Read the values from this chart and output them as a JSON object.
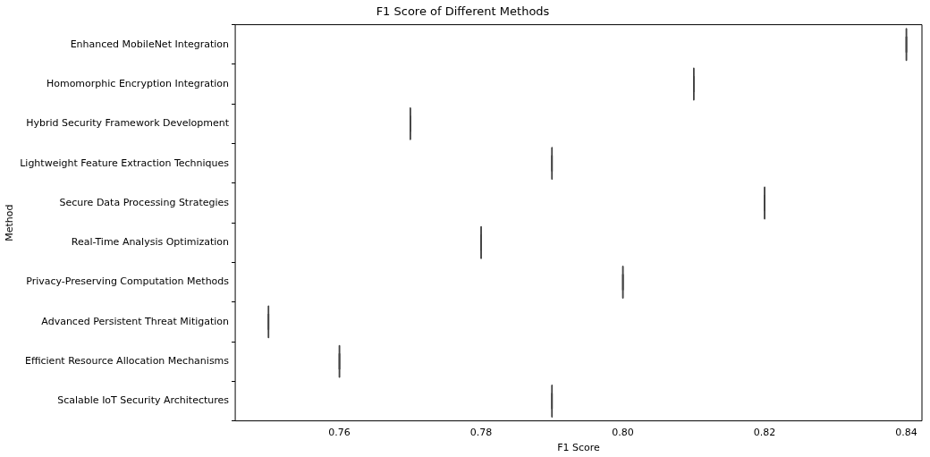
{
  "chart_data": {
    "type": "box",
    "orientation": "horizontal",
    "title": "F1 Score of Different Methods",
    "xlabel": "F1 Score",
    "ylabel": "Method",
    "categories": [
      "Enhanced MobileNet Integration",
      "Homomorphic Encryption Integration",
      "Hybrid Security Framework Development",
      "Lightweight Feature Extraction Techniques",
      "Secure Data Processing Strategies",
      "Real-Time Analysis Optimization",
      "Privacy-Preserving Computation Methods",
      "Advanced Persistent Threat Mitigation",
      "Efficient Resource Allocation Mechanisms",
      "Scalable IoT Security Architectures"
    ],
    "color": "#444444",
    "boxes": [
      {
        "low": 0.84,
        "q1": 0.84,
        "median": 0.84,
        "q3": 0.84,
        "high": 0.84
      },
      {
        "low": 0.81,
        "q1": 0.81,
        "median": 0.81,
        "q3": 0.81,
        "high": 0.81
      },
      {
        "low": 0.77,
        "q1": 0.77,
        "median": 0.77,
        "q3": 0.77,
        "high": 0.77
      },
      {
        "low": 0.79,
        "q1": 0.79,
        "median": 0.79,
        "q3": 0.79,
        "high": 0.79
      },
      {
        "low": 0.82,
        "q1": 0.82,
        "median": 0.82,
        "q3": 0.82,
        "high": 0.82
      },
      {
        "low": 0.78,
        "q1": 0.78,
        "median": 0.78,
        "q3": 0.78,
        "high": 0.78
      },
      {
        "low": 0.8,
        "q1": 0.8,
        "median": 0.8,
        "q3": 0.8,
        "high": 0.8
      },
      {
        "low": 0.75,
        "q1": 0.75,
        "median": 0.75,
        "q3": 0.75,
        "high": 0.75
      },
      {
        "low": 0.76,
        "q1": 0.76,
        "median": 0.76,
        "q3": 0.76,
        "high": 0.76
      },
      {
        "low": 0.79,
        "q1": 0.79,
        "median": 0.79,
        "q3": 0.79,
        "high": 0.79
      }
    ],
    "xlim": [
      0.7453,
      0.8422
    ],
    "xticks": [
      {
        "value": 0.76,
        "label": "0.76"
      },
      {
        "value": 0.78,
        "label": "0.78"
      },
      {
        "value": 0.8,
        "label": "0.80"
      },
      {
        "value": 0.82,
        "label": "0.82"
      },
      {
        "value": 0.84,
        "label": "0.84"
      }
    ],
    "grid": false,
    "legend": false
  }
}
